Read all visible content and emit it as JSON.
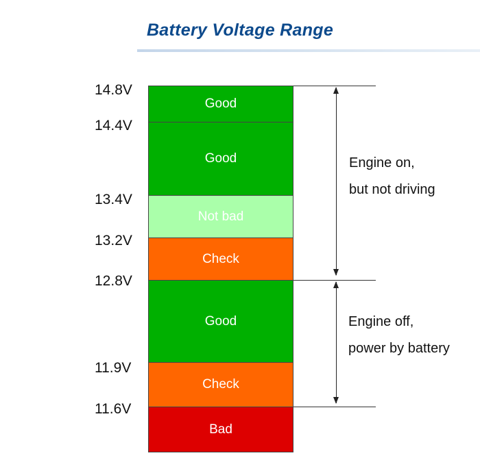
{
  "title": "Battery Voltage Range",
  "voltage_labels": [
    "14.8V",
    "14.4V",
    "13.4V",
    "13.2V",
    "12.8V",
    "11.9V",
    "11.6V"
  ],
  "segments": [
    {
      "label": "Good",
      "from": "14.8V",
      "to": "14.4V",
      "color": "#00b000",
      "text_color": "#ffffff"
    },
    {
      "label": "Good",
      "from": "14.4V",
      "to": "13.4V",
      "color": "#00b000",
      "text_color": "#ffffff"
    },
    {
      "label": "Not bad",
      "from": "13.4V",
      "to": "13.2V",
      "color": "#aaffaa",
      "text_color": "#ffffff"
    },
    {
      "label": "Check",
      "from": "13.2V",
      "to": "12.8V",
      "color": "#ff6600",
      "text_color": "#ffffff"
    },
    {
      "label": "Good",
      "from": "12.8V",
      "to": "11.9V",
      "color": "#00b000",
      "text_color": "#ffffff"
    },
    {
      "label": "Check",
      "from": "11.9V",
      "to": "11.6V",
      "color": "#ff6600",
      "text_color": "#ffffff"
    },
    {
      "label": "Bad",
      "from": "11.6V",
      "to": "",
      "color": "#dd0000",
      "text_color": "#ffffff"
    }
  ],
  "ranges": [
    {
      "line1": "Engine on,",
      "line2": "but not driving",
      "from": "14.8V",
      "to": "12.8V"
    },
    {
      "line1": "Engine off,",
      "line2": "power by battery",
      "from": "12.8V",
      "to": "11.6V"
    }
  ]
}
